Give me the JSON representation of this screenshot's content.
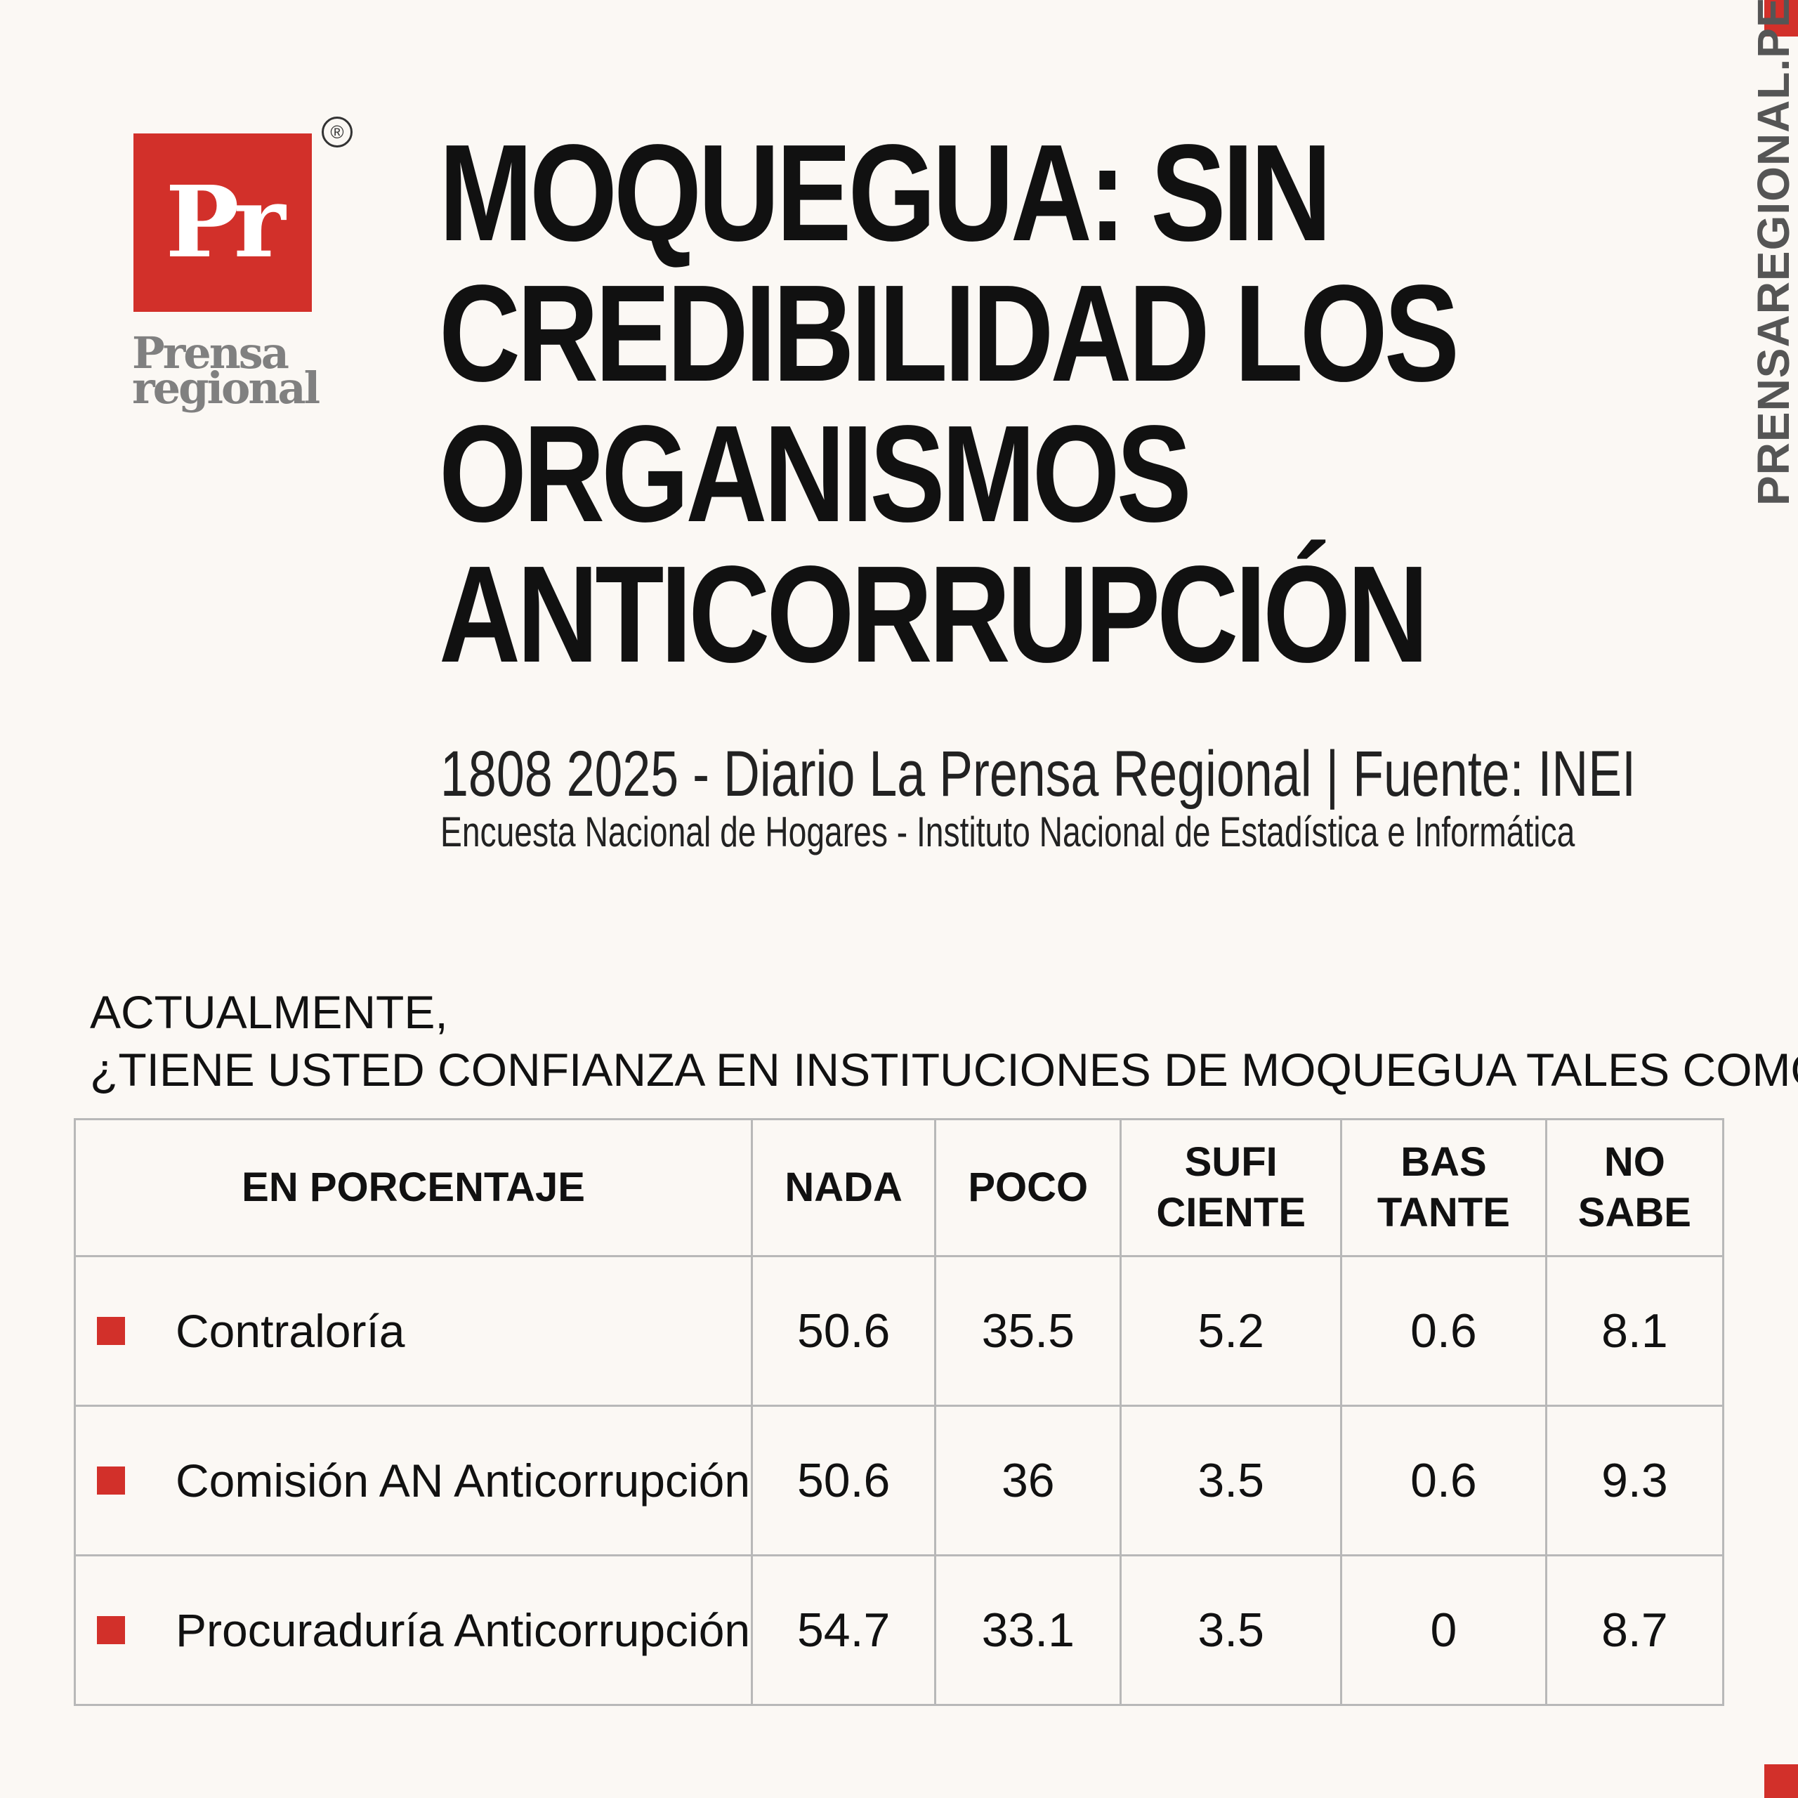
{
  "brand": {
    "logo_mark": "Pr",
    "registered": "®",
    "logo_word_line1": "Prensa",
    "logo_word_line2": "regional",
    "site": "PRENSAREGIONAL.PE",
    "accent": "#d2302a"
  },
  "header": {
    "title": "MOQUEGUA: SIN CREDIBILIDAD LOS ORGANISMOS ANTICORRUPCIÓN",
    "subtitle": "1808 2025 - Diario La Prensa Regional | Fuente: INEI",
    "source_detail": "Encuesta Nacional de Hogares - Instituto Nacional de Estadística e Informática"
  },
  "question": {
    "line1": "ACTUALMENTE,",
    "line2": "¿TIENE USTED CONFIANZA EN INSTITUCIONES DE MOQUEGUA TALES COMO:"
  },
  "chart_data": {
    "type": "table",
    "unit_header": "EN PORCENTAJE",
    "columns": [
      {
        "line1": "NADA",
        "line2": ""
      },
      {
        "line1": "POCO",
        "line2": ""
      },
      {
        "line1": "SUFI",
        "line2": "CIENTE"
      },
      {
        "line1": "BAS",
        "line2": "TANTE"
      },
      {
        "line1": "NO",
        "line2": "SABE"
      }
    ],
    "rows": [
      {
        "label": "Contraloría",
        "values": [
          "50.6",
          "35.5",
          "5.2",
          "0.6",
          "8.1"
        ]
      },
      {
        "label": "Comisión AN Anticorrupción",
        "values": [
          "50.6",
          "36",
          "3.5",
          "0.6",
          "9.3"
        ]
      },
      {
        "label": "Procuraduría Anticorrupción",
        "values": [
          "54.7",
          "33.1",
          "3.5",
          "0",
          "8.7"
        ]
      }
    ]
  }
}
